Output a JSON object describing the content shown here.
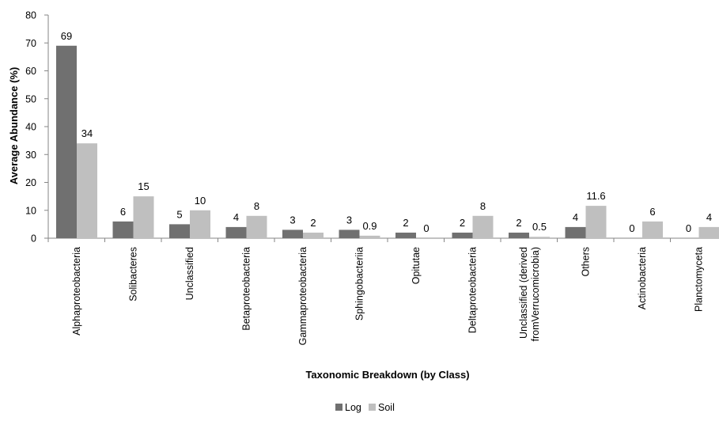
{
  "chart_data": {
    "type": "bar",
    "xlabel": "Taxonomic Breakdown (by Class)",
    "ylabel": "Average Abundance (%)",
    "ylim": [
      0,
      80
    ],
    "yticks": [
      "0",
      "10",
      "20",
      "30",
      "40",
      "50",
      "60",
      "70",
      "80"
    ],
    "grid": false,
    "legend_position": "bottom-center",
    "categories": [
      "Alphaproteobacteria",
      "Solibacteres",
      "Unclassified",
      "Betaproteobacteria",
      "Gammaproteobacteria",
      "Sphingobacteriia",
      "Opitutae",
      "Deltaproteobacteria",
      "Unclassified (derived fromVerrucomicrobia)",
      "Others",
      "Actinobacteria",
      "Planctomyceta"
    ],
    "series": [
      {
        "name": "Log",
        "color": "#707070",
        "values": [
          69,
          6,
          5,
          4,
          3,
          3,
          2,
          2,
          2,
          4,
          0,
          0
        ],
        "labels": [
          "69",
          "6",
          "5",
          "4",
          "3",
          "3",
          "2",
          "2",
          "2",
          "4",
          "0",
          "0"
        ]
      },
      {
        "name": "Soil",
        "color": "#bfbfbf",
        "values": [
          34,
          15,
          10,
          8,
          2,
          0.9,
          0,
          8,
          0.5,
          11.6,
          6,
          4
        ],
        "labels": [
          "34",
          "15",
          "10",
          "8",
          "2",
          "0.9",
          "0",
          "8",
          "0.5",
          "11.6",
          "6",
          "4"
        ]
      }
    ]
  }
}
